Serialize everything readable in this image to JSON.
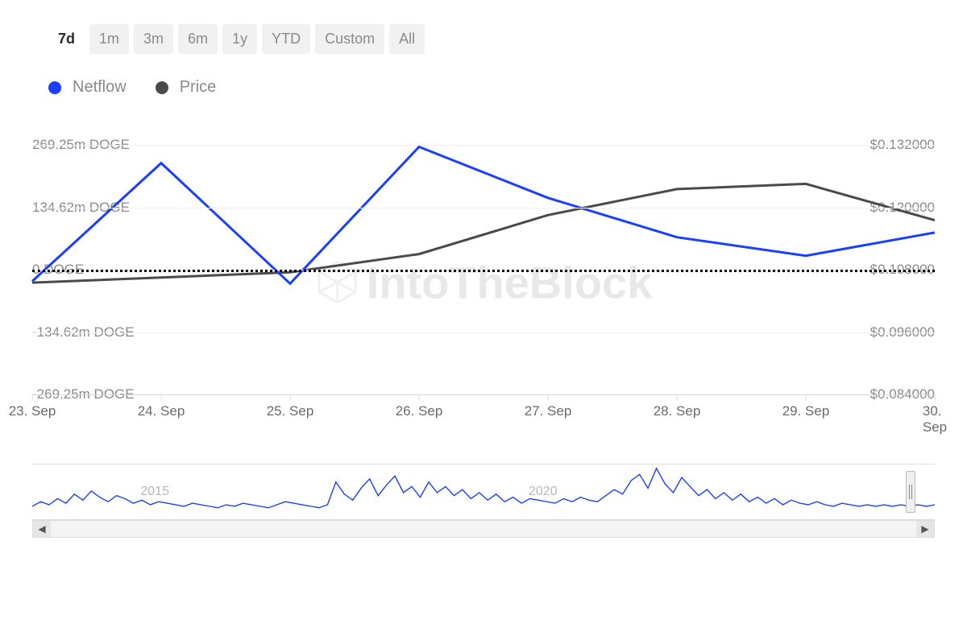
{
  "range_tabs": {
    "items": [
      "7d",
      "1m",
      "3m",
      "6m",
      "1y",
      "YTD",
      "Custom",
      "All"
    ],
    "active_index": 0
  },
  "legend": {
    "netflow": {
      "label": "Netflow",
      "color": "#1a3fff"
    },
    "price": {
      "label": "Price",
      "color": "#4a4a4a"
    }
  },
  "chart": {
    "type": "line",
    "background_color": "#ffffff",
    "grid_color": "#f0f0f0",
    "zero_line_color": "#000000",
    "watermark_text": "IntoTheBlock",
    "watermark_color": "#e8e8e8",
    "x_categories": [
      "23. Sep",
      "24. Sep",
      "25. Sep",
      "26. Sep",
      "27. Sep",
      "28. Sep",
      "29. Sep",
      "30. Sep"
    ],
    "y_left": {
      "labels": [
        "269.25m DOGE",
        "134.62m DOGE",
        "0 DOGE",
        "-134.62m DOGE",
        "-269.25m DOGE"
      ],
      "min": -269.25,
      "max": 269.25
    },
    "y_right": {
      "labels": [
        "$0.132000",
        "$0.120000",
        "$0.108000",
        "$0.096000",
        "$0.084000"
      ],
      "min": 0.084,
      "max": 0.132
    },
    "series": {
      "netflow": {
        "color": "#1a3fff",
        "stroke_width": 3,
        "axis": "left",
        "values": [
          -25,
          230,
          -30,
          265,
          155,
          70,
          30,
          80
        ]
      },
      "price": {
        "color": "#4a4a4a",
        "stroke_width": 3,
        "axis": "right",
        "values": [
          0.1055,
          0.1065,
          0.1075,
          0.111,
          0.1185,
          0.1235,
          0.1245,
          0.1175
        ]
      }
    }
  },
  "navigator": {
    "year_labels": [
      {
        "text": "2015",
        "pct": 12
      },
      {
        "text": "2020",
        "pct": 55
      }
    ],
    "line_color": "#1a3fff",
    "values": [
      12,
      18,
      14,
      22,
      16,
      28,
      20,
      32,
      24,
      18,
      26,
      22,
      16,
      20,
      14,
      18,
      16,
      14,
      12,
      16,
      14,
      12,
      10,
      14,
      12,
      16,
      14,
      12,
      10,
      14,
      18,
      16,
      14,
      12,
      10,
      14,
      44,
      28,
      20,
      36,
      48,
      26,
      40,
      52,
      30,
      38,
      24,
      44,
      30,
      38,
      26,
      34,
      22,
      30,
      20,
      28,
      18,
      24,
      16,
      22,
      20,
      18,
      16,
      22,
      18,
      24,
      20,
      18,
      26,
      34,
      28,
      46,
      54,
      36,
      62,
      42,
      30,
      50,
      38,
      26,
      34,
      22,
      30,
      20,
      28,
      18,
      24,
      16,
      22,
      14,
      20,
      16,
      14,
      18,
      14,
      12,
      16,
      14,
      12,
      14,
      12,
      14,
      12,
      14,
      12,
      14,
      12,
      14
    ],
    "scroll_left_glyph": "◀",
    "scroll_right_glyph": "▶"
  }
}
